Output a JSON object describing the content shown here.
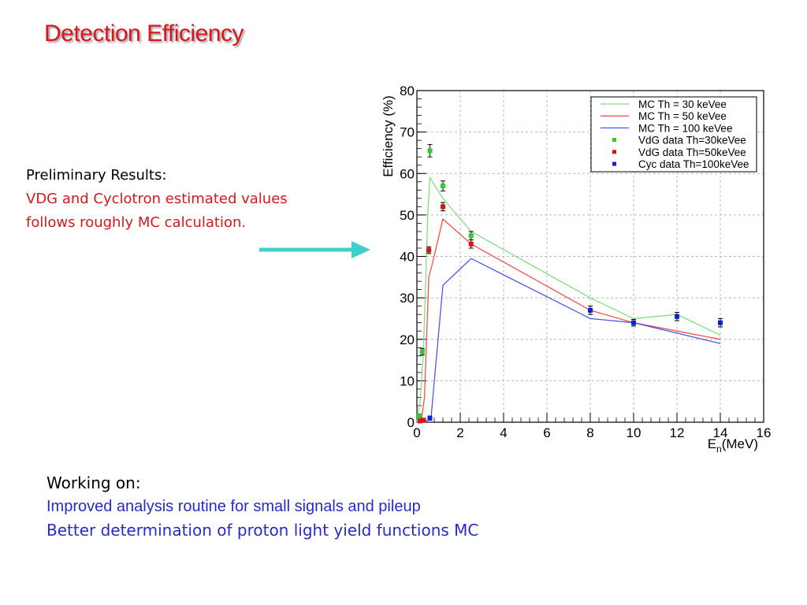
{
  "slide": {
    "title": "Detection Efficiency",
    "preliminary": {
      "heading": "Preliminary Results:",
      "line1": "VDG and Cyclotron estimated values",
      "line2": "follows roughly MC calculation."
    },
    "working": {
      "heading": "Working on:",
      "item1": "Improved analysis routine for small signals and pileup",
      "item2": "Better determination of proton light yield functions MC"
    },
    "colors": {
      "title": "#d9161c",
      "red_text": "#d9161c",
      "blue_text": "#2a2ac8",
      "arrow": "#3fd0cc"
    }
  },
  "chart_data": {
    "type": "line",
    "ylabel": "Efficiency (%)",
    "xlabel_main": "E",
    "xlabel_sub": "n",
    "xlabel_unit": "(MeV)",
    "xlim": [
      0,
      16
    ],
    "ylim": [
      0,
      80
    ],
    "xticks": [
      "0",
      "2",
      "4",
      "6",
      "8",
      "10",
      "12",
      "14",
      "16"
    ],
    "yticks": [
      "0",
      "10",
      "20",
      "30",
      "40",
      "50",
      "60",
      "70",
      "80"
    ],
    "grid": true,
    "legend_position": "top-right",
    "series": [
      {
        "name": "MC Th = 30 keVee",
        "kind": "line",
        "color": "#7fe07f",
        "x": [
          0,
          0.15,
          0.3,
          0.5,
          0.6,
          1.2,
          2.5,
          8,
          10,
          12,
          14
        ],
        "y": [
          0,
          5,
          17,
          50,
          59,
          54,
          46,
          30,
          25,
          26,
          21
        ]
      },
      {
        "name": "MC Th = 50 keVee",
        "kind": "line",
        "color": "#f05050",
        "x": [
          0,
          0.2,
          0.35,
          0.55,
          0.7,
          1.2,
          2.5,
          8,
          10,
          12,
          14
        ],
        "y": [
          0,
          0.2,
          6,
          35,
          38,
          49,
          43,
          27,
          24,
          22,
          20
        ]
      },
      {
        "name": "MC Th = 100 keVee",
        "kind": "line",
        "color": "#4a5ae8",
        "x": [
          0,
          0.45,
          0.65,
          1.2,
          2.5,
          8,
          10,
          12,
          14
        ],
        "y": [
          0,
          0.3,
          1,
          33,
          39.5,
          25,
          24,
          21.5,
          19
        ]
      },
      {
        "name": "VdG data Th=30keVee",
        "kind": "points",
        "color": "#2fcc2f",
        "x": [
          0.1,
          0.25,
          0.6,
          1.2,
          2.5
        ],
        "y": [
          1.5,
          17,
          65.5,
          57,
          45
        ],
        "err": [
          0.5,
          0.8,
          1.5,
          1.2,
          1.0
        ]
      },
      {
        "name": "VdG data Th=50keVee",
        "kind": "points",
        "color": "#e01010",
        "x": [
          0.15,
          0.3,
          0.55,
          1.2,
          2.5
        ],
        "y": [
          0.3,
          0.5,
          41.5,
          52,
          43
        ],
        "err": [
          0.3,
          0.3,
          0.8,
          1.0,
          1.0
        ]
      },
      {
        "name": "Cyc data Th=100keVee",
        "kind": "points",
        "color": "#1020d0",
        "x": [
          0.6,
          8,
          10,
          12,
          14
        ],
        "y": [
          1,
          27,
          24,
          25.5,
          24
        ],
        "err": [
          0.5,
          1.0,
          0.8,
          1.0,
          1.0
        ]
      }
    ]
  }
}
